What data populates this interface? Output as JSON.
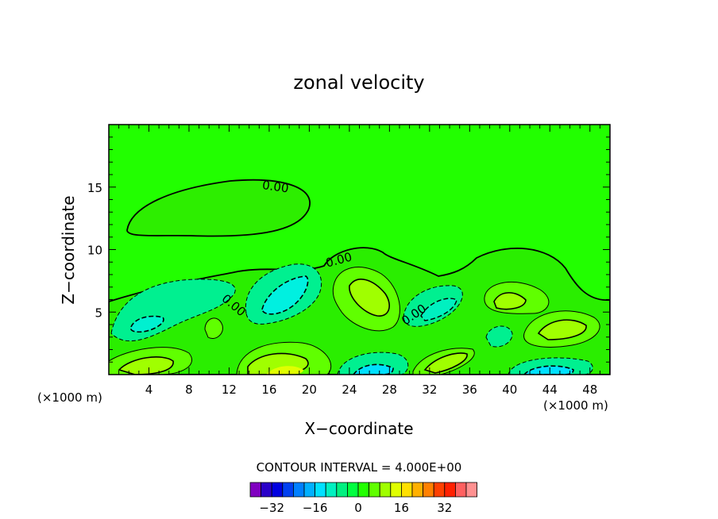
{
  "chart_data": {
    "type": "contour",
    "title": "zonal velocity",
    "xlabel": "X−coordinate",
    "ylabel": "Z−coordinate",
    "x_units_left": "(×1000 m)",
    "x_units_right": "(×1000 m)",
    "xlim": [
      0,
      50
    ],
    "ylim": [
      0,
      20
    ],
    "x_ticks": [
      4,
      8,
      12,
      16,
      20,
      24,
      28,
      32,
      36,
      40,
      44,
      48
    ],
    "y_ticks": [
      5,
      10,
      15
    ],
    "contour_interval_text": "CONTOUR INTERVAL = 4.000E+00",
    "contour_labels": [
      "0.00",
      "0.00",
      "0.00",
      "0.00"
    ],
    "colorbar": {
      "levels": [
        -40,
        -36,
        -32,
        -28,
        -24,
        -20,
        -16,
        -12,
        -8,
        -4,
        0,
        4,
        8,
        12,
        16,
        20,
        24,
        28,
        32,
        36,
        40
      ],
      "tick_values": [
        -32,
        -16,
        0,
        16,
        32
      ],
      "tick_labels": [
        "−32",
        "−16",
        "0",
        "16",
        "32"
      ],
      "colors": [
        "#8000c0",
        "#2a00c8",
        "#0000e0",
        "#0040f0",
        "#0080ff",
        "#00b0ff",
        "#00e0ff",
        "#00f0c0",
        "#00f080",
        "#00ff40",
        "#22ff00",
        "#60ff00",
        "#a0ff00",
        "#e0ff00",
        "#ffe000",
        "#ffb000",
        "#ff8000",
        "#ff4000",
        "#ff2000",
        "#ff6060",
        "#ff9090"
      ]
    },
    "background_color": "#22ff00"
  }
}
